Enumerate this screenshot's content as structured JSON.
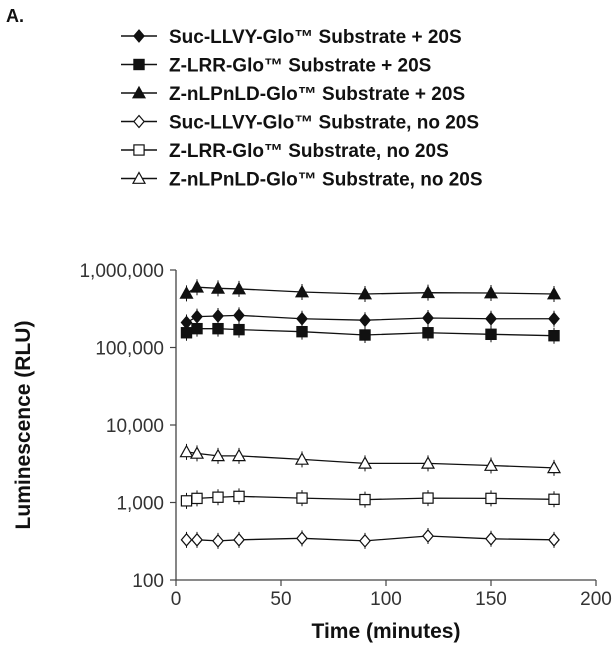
{
  "panel_label": "A.",
  "chart_data": {
    "type": "line",
    "title": "",
    "xlabel": "Time (minutes)",
    "ylabel": "Luminescence (RLU)",
    "xlim": [
      0,
      200
    ],
    "ylim": [
      100,
      1000000
    ],
    "yscale": "log",
    "grid": false,
    "legend_position": "top",
    "x_ticks": [
      "0",
      "50",
      "100",
      "150",
      "200"
    ],
    "y_ticks": [
      "100",
      "1,000",
      "10,000",
      "100,000",
      "1,000,000"
    ],
    "x": [
      5,
      10,
      20,
      30,
      60,
      90,
      120,
      150,
      180
    ],
    "series": [
      {
        "name": "Suc-LLVY-Glo™ Substrate + 20S",
        "marker": "diamond",
        "filled": true,
        "values": [
          210000,
          250000,
          255000,
          260000,
          235000,
          225000,
          240000,
          235000,
          235000
        ]
      },
      {
        "name": "Z-LRR-Glo™ Substrate + 20S",
        "marker": "square",
        "filled": true,
        "values": [
          155000,
          175000,
          175000,
          170000,
          160000,
          145000,
          155000,
          148000,
          142000
        ]
      },
      {
        "name": "Z-nLPnLD-Glo™ Substrate + 20S",
        "marker": "triangle",
        "filled": true,
        "values": [
          500000,
          600000,
          580000,
          570000,
          520000,
          490000,
          510000,
          505000,
          490000
        ]
      },
      {
        "name": "Suc-LLVY-Glo™ Substrate, no 20S",
        "marker": "diamond",
        "filled": false,
        "values": [
          330,
          330,
          320,
          330,
          345,
          320,
          370,
          340,
          330
        ]
      },
      {
        "name": "Z-LRR-Glo™ Substrate, no 20S",
        "marker": "square",
        "filled": false,
        "values": [
          1050,
          1130,
          1170,
          1200,
          1140,
          1090,
          1140,
          1130,
          1100
        ]
      },
      {
        "name": "Z-nLPnLD-Glo™ Substrate, no 20S",
        "marker": "triangle",
        "filled": false,
        "values": [
          4500,
          4300,
          4000,
          4000,
          3600,
          3200,
          3200,
          3000,
          2800
        ]
      }
    ]
  }
}
